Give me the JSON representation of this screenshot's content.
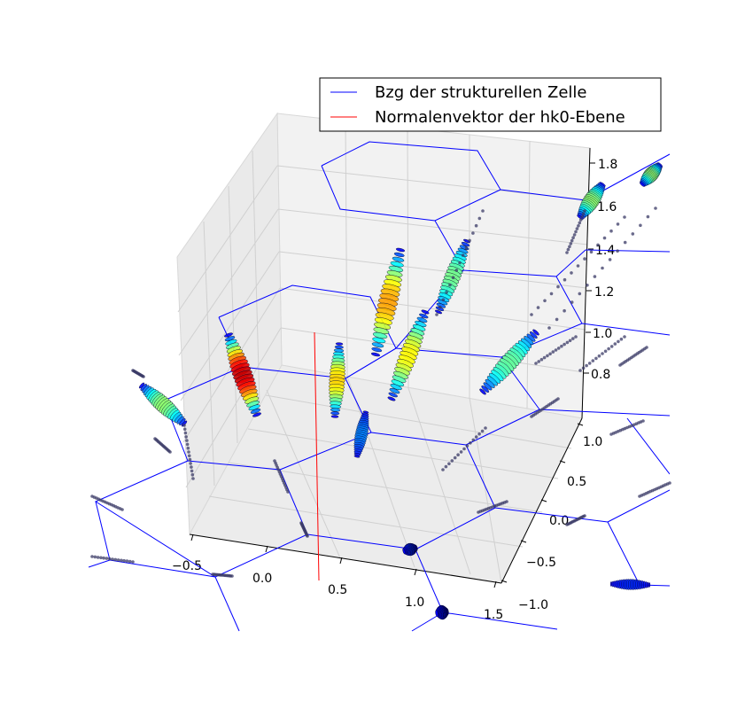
{
  "chart_data": {
    "type": "scatter",
    "projection": "3d",
    "title": "",
    "xlabel": "",
    "ylabel": "",
    "zlabel": "",
    "xlim": [
      -0.7,
      1.6
    ],
    "ylim": [
      -1.1,
      1.1
    ],
    "zlim": [
      0.65,
      1.9
    ],
    "x_ticks": [
      "−0.5",
      "0.0",
      "0.5",
      "1.0",
      "1.5"
    ],
    "y_ticks": [
      "−1.0",
      "−0.5",
      "0.0",
      "0.5",
      "1.0"
    ],
    "z_ticks": [
      "0.8",
      "1.0",
      "1.2",
      "1.4",
      "1.6",
      "1.8"
    ],
    "grid": true,
    "legend": {
      "location": "upper right",
      "entries": [
        {
          "label": "Bzg der strukturellen Zelle",
          "color": "#0000ff",
          "style": "line"
        },
        {
          "label": "Normalenvektor der hk0-Ebene",
          "color": "#ff0000",
          "style": "line"
        }
      ]
    },
    "colormap": "jet",
    "series": [
      {
        "name": "Bzg der strukturellen Zelle",
        "kind": "hexagonal-grid-lines",
        "color": "#0000ff"
      },
      {
        "name": "Normalenvektor der hk0-Ebene",
        "kind": "vertical-line",
        "color": "#ff0000"
      }
    ]
  }
}
